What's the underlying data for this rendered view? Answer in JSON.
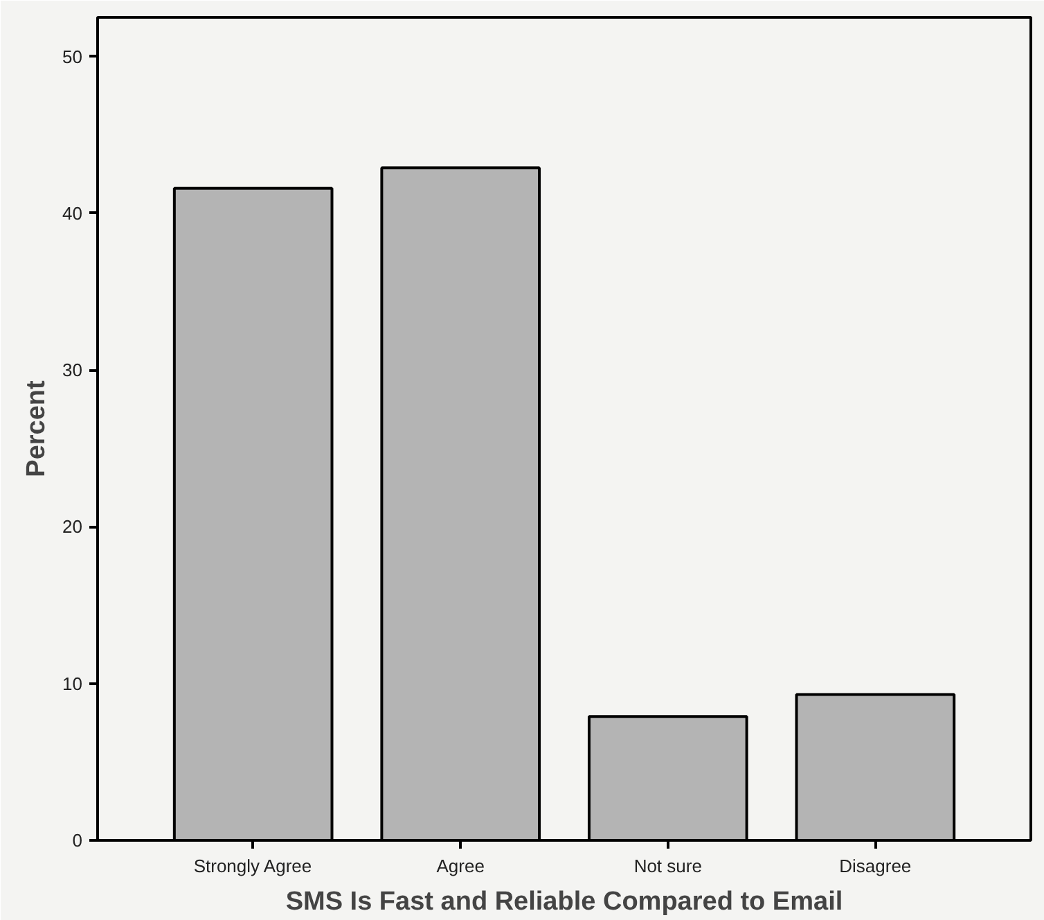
{
  "chart_data": {
    "type": "bar",
    "xlabel": "SMS Is Fast and Reliable Compared to Email",
    "ylabel": "Percent",
    "categories": [
      "Strongly Agree",
      "Agree",
      "Not sure",
      "Disagree"
    ],
    "values": [
      41.6,
      42.9,
      7.9,
      9.3
    ],
    "color": "#b4b4b4",
    "ylim": [
      0,
      52.5
    ],
    "yticks": [
      0,
      10,
      20,
      30,
      40,
      50
    ],
    "grid": false
  }
}
